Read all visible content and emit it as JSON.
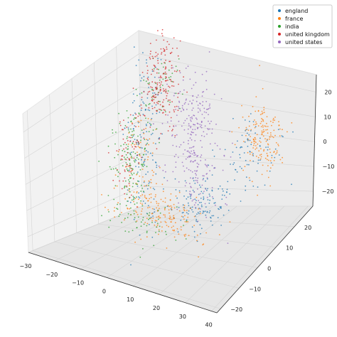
{
  "chart_data": {
    "type": "scatter",
    "dimensions": 3,
    "title": "",
    "xlabel": "",
    "ylabel": "",
    "zlabel": "",
    "xlim": [
      -30,
      42
    ],
    "ylim": [
      -22,
      30
    ],
    "zlim": [
      -26,
      27
    ],
    "x_ticks": [
      "−30",
      "−20",
      "−10",
      "0",
      "10",
      "20",
      "30",
      "40"
    ],
    "y_ticks": [
      "−20",
      "−10",
      "0",
      "10",
      "20"
    ],
    "z_ticks": [
      "−20",
      "−10",
      "0",
      "10",
      "20"
    ],
    "grid": true,
    "legend_position": "top-right",
    "series": [
      {
        "name": "england",
        "color": "#1f77b4"
      },
      {
        "name": "france",
        "color": "#ff7f0e"
      },
      {
        "name": "india",
        "color": "#2ca02c"
      },
      {
        "name": "united kingdom",
        "color": "#d62728"
      },
      {
        "name": "united states",
        "color": "#9467bd"
      }
    ]
  }
}
